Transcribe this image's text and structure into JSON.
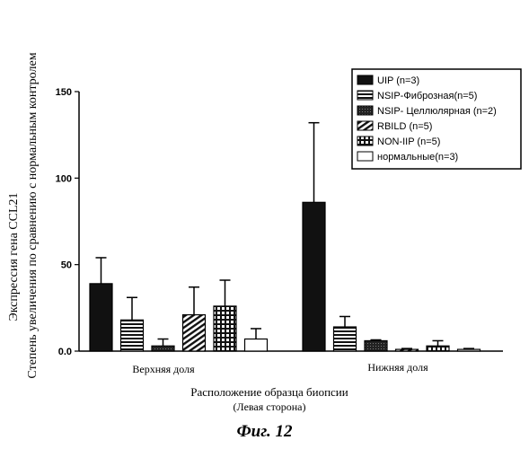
{
  "chart_data": {
    "type": "bar",
    "title": "",
    "ylabel_line1": "Экспрессия гена CCL21",
    "ylabel_line2": "Степень увеличения по сравнению с нормальным контролем",
    "xlabel_line1": "Расположение образца биопсии",
    "xlabel_line2": "(Левая сторона)",
    "ylim": [
      0,
      150
    ],
    "yticks": [
      "0.0",
      "50",
      "100",
      "150"
    ],
    "ytick_values": [
      0,
      50,
      100,
      150
    ],
    "categories": [
      "Верхняя доля",
      "Нижняя доля"
    ],
    "legend_position": "top-right",
    "series": [
      {
        "name": "UIP (n=3)",
        "fill": "solid-black",
        "values": [
          39,
          86
        ],
        "errors": [
          15,
          46
        ]
      },
      {
        "name": "NSIP-Фиброзная(n=5)",
        "fill": "horizontal-hatch",
        "values": [
          18,
          14
        ],
        "errors": [
          13,
          6
        ]
      },
      {
        "name": "NSIP- Целлюлярная (n=2)",
        "fill": "dense-dark",
        "values": [
          3,
          6
        ],
        "errors": [
          4,
          0.5
        ]
      },
      {
        "name": "RBILD (n=5)",
        "fill": "diagonal-hatch",
        "values": [
          21,
          1
        ],
        "errors": [
          16,
          0.5
        ]
      },
      {
        "name": "NON-IIP (n=5)",
        "fill": "crosshatch",
        "values": [
          26,
          3
        ],
        "errors": [
          15,
          3
        ]
      },
      {
        "name": "нормальные(n=3)",
        "fill": "white",
        "values": [
          7,
          1
        ],
        "errors": [
          6,
          0.5
        ]
      }
    ]
  },
  "caption": "Фиг. 12"
}
